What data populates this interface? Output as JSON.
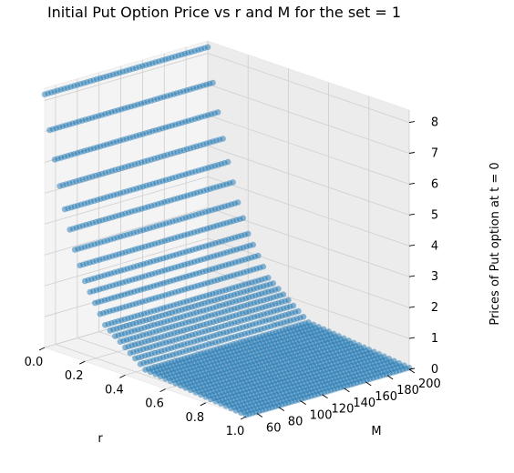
{
  "chart_data": {
    "type": "scatter",
    "projection": "3d",
    "title": "Initial Put Option Price vs r and M for the set = 1",
    "xlabel": "r",
    "ylabel": "M",
    "zlabel": "Prices of Put option at t = 0",
    "xlim": [
      0.0,
      1.0
    ],
    "ylim": [
      50,
      200
    ],
    "zlim": [
      0,
      8.4
    ],
    "xticks": [
      "0.0",
      "0.2",
      "0.4",
      "0.6",
      "0.8",
      "1.0"
    ],
    "yticks": [
      "60",
      "80",
      "100",
      "120",
      "140",
      "160",
      "180",
      "200"
    ],
    "zticks": [
      "0",
      "1",
      "2",
      "3",
      "4",
      "5",
      "6",
      "7",
      "8"
    ],
    "grid": true,
    "marker_color": "#1f77b4",
    "series": [
      {
        "x_range": [
          0.0,
          1.0
        ],
        "y_range": [
          50,
          200
        ],
        "z_description": "put price, highest (about 8.2) at r = 0 and decaying toward 0 as r grows; roughly constant along M",
        "sample_points": [
          {
            "r": 0.0,
            "price": 8.2
          },
          {
            "r": 0.025,
            "price": 7.1
          },
          {
            "r": 0.05,
            "price": 6.2
          },
          {
            "r": 0.075,
            "price": 5.4
          },
          {
            "r": 0.1,
            "price": 4.7
          },
          {
            "r": 0.125,
            "price": 4.1
          },
          {
            "r": 0.15,
            "price": 3.5
          },
          {
            "r": 0.2,
            "price": 2.6
          },
          {
            "r": 0.3,
            "price": 1.4
          },
          {
            "r": 0.5,
            "price": 0.4
          },
          {
            "r": 1.0,
            "price": 0.05
          }
        ]
      }
    ]
  }
}
